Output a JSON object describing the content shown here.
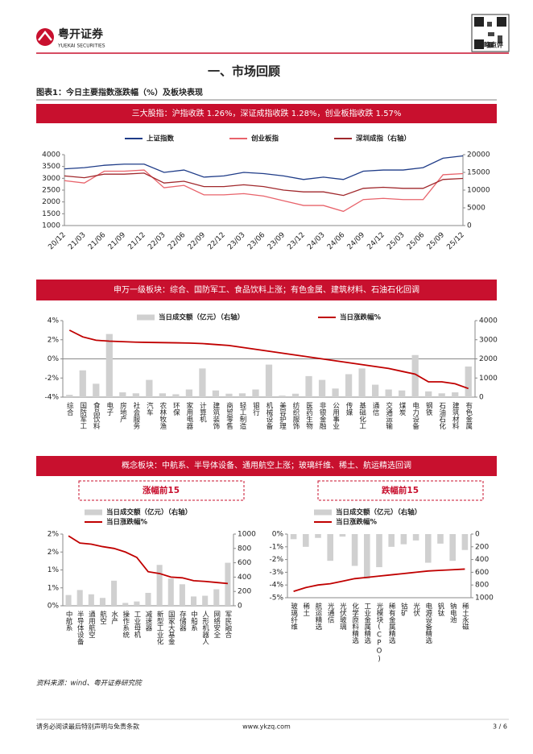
{
  "header": {
    "logo_cn": "粤开证券",
    "logo_en": "YUEKAI SECURITIES",
    "tag": "策略点评"
  },
  "section_title": "一、市场回顾",
  "figure_title": "图表1：今日主要指数涨跌幅（%）及板块表现",
  "banners": [
    "三大股指：沪指收跌 1.26%，深证成指收跌 1.28%，创业板指收跌 1.57%",
    "申万一级板块：综合、国防军工、食品饮料上涨；有色金属、建筑材料、石油石化回调",
    "概念板块：中航系、半导体设备、通用航空上涨；玻璃纤维、稀土、航运精选回调"
  ],
  "chart_data": [
    {
      "type": "line",
      "categories": [
        "20/12",
        "21/03",
        "21/06",
        "21/09",
        "21/12",
        "22/03",
        "22/06",
        "22/09",
        "22/12",
        "23/03",
        "23/06",
        "23/09",
        "23/12",
        "24/03",
        "24/06",
        "24/09",
        "24/12",
        "25/03",
        "25/06",
        "25/09",
        "25/12"
      ],
      "series": [
        {
          "name": "上证指数",
          "color": "#1f3c88",
          "kind": "line",
          "values": [
            3400,
            3450,
            3550,
            3600,
            3600,
            3250,
            3350,
            3050,
            3100,
            3250,
            3200,
            3100,
            2950,
            3050,
            2950,
            3300,
            3350,
            3350,
            3450,
            3850,
            3950
          ]
        },
        {
          "name": "创业板指",
          "color": "#e8636b",
          "kind": "line",
          "values": [
            2900,
            2800,
            3300,
            3300,
            3350,
            2600,
            2700,
            2300,
            2300,
            2350,
            2250,
            2050,
            1850,
            1850,
            1600,
            2100,
            2150,
            2100,
            2100,
            3150,
            3200
          ]
        },
        {
          "name": "深圳成指（右轴）",
          "color": "#a0282c",
          "kind": "line",
          "axis": "y2",
          "values": [
            14000,
            13500,
            14500,
            14500,
            14800,
            12000,
            12500,
            11000,
            11000,
            11500,
            11000,
            10000,
            9500,
            9500,
            8500,
            10500,
            10800,
            10500,
            10500,
            13000,
            13300
          ]
        }
      ],
      "ylim": [
        1000,
        4000
      ],
      "yticks": [
        1000,
        1500,
        2000,
        2500,
        3000,
        3500,
        4000
      ],
      "y2lim": [
        0,
        20000
      ],
      "y2ticks": [
        0,
        5000,
        10000,
        15000,
        20000
      ]
    },
    {
      "type": "combo",
      "categories": [
        "综合",
        "国防军工",
        "食品饮料",
        "电子",
        "房地产",
        "社会服务",
        "汽车",
        "农林牧渔",
        "环保",
        "家用电器",
        "计算机",
        "建筑装饰",
        "商贸零售",
        "轻工制造",
        "银行",
        "机械设备",
        "美容护理",
        "纺织服饰",
        "医药生物",
        "非银金融",
        "公用事业",
        "传媒",
        "基础化工",
        "通信",
        "交通运输",
        "煤炭",
        "电力设备",
        "钢铁",
        "石油石化",
        "建筑材料",
        "有色金属"
      ],
      "series": [
        {
          "name": "当日成交额（亿元）（右轴）",
          "color": "#d0d0d0",
          "kind": "bar",
          "axis": "y2",
          "values": [
            120,
            1400,
            700,
            3300,
            250,
            200,
            900,
            200,
            150,
            400,
            1500,
            350,
            180,
            200,
            400,
            1700,
            80,
            180,
            1100,
            900,
            450,
            1200,
            1500,
            650,
            400,
            350,
            2200,
            300,
            200,
            250,
            1600
          ]
        },
        {
          "name": "当日涨跌幅%",
          "color": "#c00000",
          "kind": "line",
          "values": [
            3.0,
            2.3,
            1.95,
            1.85,
            1.8,
            1.75,
            1.72,
            1.7,
            1.68,
            1.65,
            1.6,
            1.5,
            1.4,
            1.2,
            1.0,
            0.8,
            0.6,
            0.4,
            0.2,
            0.0,
            -0.2,
            -0.4,
            -0.6,
            -0.8,
            -1.0,
            -1.3,
            -1.6,
            -2.4,
            -2.4,
            -2.6,
            -3.1
          ]
        }
      ],
      "ylim": [
        -4,
        4
      ],
      "yticks": [
        {
          "value": -4,
          "label": "-4%"
        },
        {
          "value": -2,
          "label": "-2%"
        },
        {
          "value": 0,
          "label": "0%"
        },
        {
          "value": 2,
          "label": "2%"
        },
        {
          "value": 4,
          "label": "4%"
        }
      ],
      "y2lim": [
        0,
        4000
      ],
      "y2ticks": [
        0,
        1000,
        2000,
        3000,
        4000
      ]
    },
    {
      "type": "combo",
      "title": "涨幅前15",
      "categories": [
        "中航系",
        "半导体设备",
        "通用航空",
        "航空",
        "水产",
        "操作系统",
        "工业母机",
        "减速器",
        "新型工业化",
        "国家大基金",
        "存储器",
        "中船系",
        "人形机器人",
        "网络安全",
        "军民融合"
      ],
      "series": [
        {
          "name": "当日成交额（亿元）（右轴）",
          "color": "#d0d0d0",
          "kind": "bar",
          "axis": "y2",
          "values": [
            150,
            220,
            160,
            110,
            350,
            40,
            60,
            180,
            570,
            380,
            300,
            130,
            140,
            230,
            600
          ]
        },
        {
          "name": "当日涨跌幅%",
          "color": "#c00000",
          "kind": "line",
          "values": [
            1.95,
            1.75,
            1.72,
            1.65,
            1.6,
            1.5,
            1.35,
            0.95,
            0.9,
            0.8,
            0.78,
            0.7,
            0.68,
            0.65,
            0.62
          ]
        }
      ],
      "ylim": [
        0,
        2
      ],
      "yticks": [
        {
          "value": 0,
          "label": "0%"
        },
        {
          "value": 0.5,
          "label": "1%"
        },
        {
          "value": 1,
          "label": "1%"
        },
        {
          "value": 1.5,
          "label": "2%"
        },
        {
          "value": 2,
          "label": "2%"
        }
      ],
      "y2lim": [
        0,
        1000
      ],
      "y2ticks": [
        0,
        200,
        400,
        600,
        800,
        1000
      ]
    },
    {
      "type": "combo",
      "title": "跌幅前15",
      "categories": [
        "玻璃纤维",
        "稀土",
        "航运精选",
        "光通信",
        "光伏玻璃",
        "化学原料精选",
        "工业金属精选",
        "光模块(CPO)",
        "稀有金属精选",
        "钴矿",
        "光伏",
        "电源设备精选",
        "钒钛",
        "钠电池",
        "稀土永磁"
      ],
      "series": [
        {
          "name": "当日成交额（亿元）（右轴）",
          "color": "#d0d0d0",
          "kind": "bar",
          "axis": "y2",
          "values": [
            80,
            200,
            60,
            420,
            40,
            500,
            700,
            520,
            200,
            160,
            100,
            450,
            150,
            420,
            250
          ]
        },
        {
          "name": "当日涨跌幅%",
          "color": "#c00000",
          "kind": "line",
          "values": [
            -4.5,
            -4.2,
            -4.0,
            -3.9,
            -3.7,
            -3.5,
            -3.4,
            -3.3,
            -3.2,
            -3.1,
            -3.0,
            -2.9,
            -2.85,
            -2.8,
            -2.75
          ]
        }
      ],
      "ylim": [
        -5,
        0
      ],
      "yticks": [
        {
          "value": -5,
          "label": "-5%"
        },
        {
          "value": -4,
          "label": "-4%"
        },
        {
          "value": -3,
          "label": "-3%"
        },
        {
          "value": -2,
          "label": "-2%"
        },
        {
          "value": -1,
          "label": "-1%"
        },
        {
          "value": 0,
          "label": "0%"
        }
      ],
      "y2lim": [
        0,
        1000
      ],
      "y2ticks": [
        0,
        200,
        400,
        600,
        800,
        1000
      ],
      "y2_inverted": true
    }
  ],
  "source": "资料来源：wind、粤开证券研究院",
  "footer": {
    "disclaimer": "请务必阅读最后特别声明与免责条款",
    "url": "www.ykzq.com",
    "page": "3 / 6"
  }
}
